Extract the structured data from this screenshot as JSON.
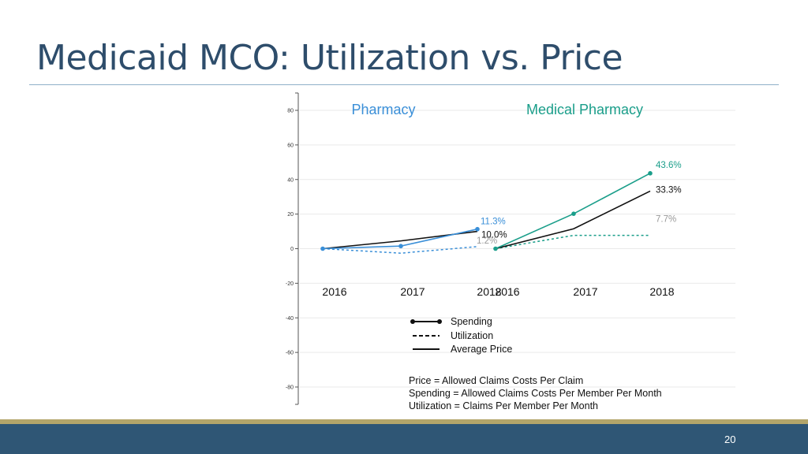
{
  "slide": {
    "title": "Medicaid MCO: Utilization vs. Price",
    "page_number": "20"
  },
  "colors": {
    "pharmacy": "#3a8fd8",
    "medical": "#1a9e8a",
    "price": "#111111",
    "utilization_label": "#999999",
    "title": "#2e4d6b",
    "footer": "#2f5675",
    "footer_stripe": "#b3a56a"
  },
  "chart_data": {
    "type": "line",
    "ylim": [
      -85,
      85
    ],
    "yticks": [
      80,
      60,
      40,
      20,
      0,
      -20,
      -40,
      -60,
      -80
    ],
    "grid": true,
    "panels": [
      {
        "title": "Pharmacy",
        "color_key": "pharmacy",
        "x": [
          "2016",
          "2017",
          "2018"
        ],
        "series": [
          {
            "name": "Spending",
            "values": [
              0,
              1.5,
              11.3
            ],
            "style": "solid-marker",
            "color_key": "pharmacy"
          },
          {
            "name": "Utilization",
            "values": [
              0,
              -2.6,
              1.2
            ],
            "style": "dashed",
            "color_key": "pharmacy"
          },
          {
            "name": "Average Price",
            "values": [
              0,
              4.5,
              10.0
            ],
            "style": "solid",
            "color_key": "price"
          }
        ],
        "annotations": [
          {
            "series": "Spending",
            "text": "11.3%",
            "color_key": "pharmacy"
          },
          {
            "series": "Average Price",
            "text": "10.0%",
            "color_key": "price"
          },
          {
            "series": "Utilization",
            "text": "1.2%",
            "color_key": "utilization_label"
          }
        ]
      },
      {
        "title": "Medical Pharmacy",
        "color_key": "medical",
        "x": [
          "2016",
          "2017",
          "2018"
        ],
        "series": [
          {
            "name": "Spending",
            "values": [
              0,
              20.2,
              43.6
            ],
            "style": "solid-marker",
            "color_key": "medical"
          },
          {
            "name": "Utilization",
            "values": [
              0,
              7.7,
              7.7
            ],
            "style": "dashed",
            "color_key": "medical"
          },
          {
            "name": "Average Price",
            "values": [
              0,
              11.5,
              33.3
            ],
            "style": "solid",
            "color_key": "price"
          }
        ],
        "annotations": [
          {
            "series": "Spending",
            "text": "43.6%",
            "color_key": "medical"
          },
          {
            "series": "Average Price",
            "text": "33.3%",
            "color_key": "price"
          },
          {
            "series": "Utilization",
            "text": "7.7%",
            "color_key": "utilization_label"
          }
        ]
      }
    ],
    "legend": {
      "placement": "bottom-center",
      "items": [
        {
          "label": "Spending",
          "style": "solid-marker"
        },
        {
          "label": "Utilization",
          "style": "dashed"
        },
        {
          "label": "Average Price",
          "style": "solid"
        }
      ]
    },
    "notes": [
      "Price = Allowed Claims Costs Per Claim",
      "Spending = Allowed Claims Costs Per Member Per Month",
      "Utilization = Claims Per Member Per Month"
    ]
  }
}
